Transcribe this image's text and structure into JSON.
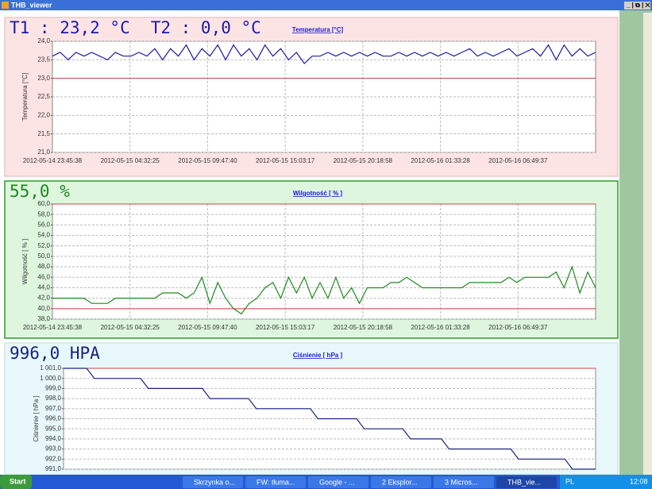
{
  "window": {
    "title": "THB_viewer"
  },
  "taskbar": {
    "start": "Start",
    "items": [
      "Skrzynka o...",
      "FW: tłuma...",
      "Google - ...",
      "2 Eksplor...",
      "3 Micros...",
      "THB_vie..."
    ],
    "language": "PL",
    "clock": "12:08"
  },
  "chart_data": [
    {
      "type": "line",
      "readouts": [
        "T1 : 23,2 °C",
        "T2 : 0,0 °C"
      ],
      "title": "Temperatura [°C]",
      "y_label": "Temperatura [°C]",
      "x_labels": [
        "2012-05-14 23:45:38",
        "2012-05-15 04:32:25",
        "2012-05-15 09:47:40",
        "2012-05-15 15:03:17",
        "2012-05-15 20:18:58",
        "2012-05-16 01:33:28",
        "2012-05-16 06:49:37"
      ],
      "color": "#1a1aa8",
      "limits": [
        23
      ],
      "values": [
        23.6,
        23.7,
        23.5,
        23.7,
        23.6,
        23.7,
        23.6,
        23.5,
        23.7,
        23.6,
        23.6,
        23.7,
        23.6,
        23.8,
        23.5,
        23.8,
        23.6,
        23.9,
        23.5,
        23.8,
        23.6,
        23.9,
        23.5,
        23.9,
        23.6,
        23.8,
        23.5,
        23.9,
        23.6,
        23.8,
        23.5,
        23.7,
        23.4,
        23.6,
        23.6,
        23.7,
        23.6,
        23.7,
        23.6,
        23.7,
        23.6,
        23.7,
        23.6,
        23.6,
        23.7,
        23.6,
        23.7,
        23.6,
        23.7,
        23.6,
        23.7,
        23.6,
        23.7,
        23.8,
        23.6,
        23.7,
        23.6,
        23.7,
        23.8,
        23.6,
        23.7,
        23.8,
        23.6,
        23.9,
        23.5,
        23.9,
        23.6,
        23.8,
        23.6,
        23.7
      ],
      "ylim": [
        21,
        24
      ],
      "yticks": [
        {
          "value": 21,
          "label": "21,0"
        },
        {
          "value": 21.5,
          "label": "21,5"
        },
        {
          "value": 22,
          "label": "22,0"
        },
        {
          "value": 22.5,
          "label": "22,5"
        },
        {
          "value": 23,
          "label": "23,0"
        },
        {
          "value": 23.5,
          "label": "23,5"
        },
        {
          "value": 24,
          "label": "24,0"
        }
      ],
      "grid": true
    },
    {
      "type": "line",
      "readouts": [
        "55,0 %"
      ],
      "title": "Wilgotność [ % ]",
      "y_label": "Wilgotność [ % ]",
      "x_labels": [
        "2012-05-14 23:45:38",
        "2012-05-15 04:32:25",
        "2012-05-15 09:47:40",
        "2012-05-15 15:03:17",
        "2012-05-15 20:18:58",
        "2012-05-16 01:33:28",
        "2012-05-16 06:49:37"
      ],
      "color": "#1e8a1e",
      "limits": [
        60,
        40
      ],
      "values": [
        42,
        42,
        42,
        42,
        42,
        41,
        41,
        41,
        42,
        42,
        42,
        42,
        42,
        42,
        43,
        43,
        43,
        42,
        43,
        46,
        41,
        45,
        42,
        40,
        39,
        41,
        42,
        44,
        45,
        42,
        46,
        43,
        46,
        42,
        45,
        42,
        46,
        42,
        44,
        41,
        44,
        44,
        44,
        45,
        45,
        46,
        45,
        44,
        44,
        44,
        44,
        44,
        44,
        45,
        45,
        45,
        45,
        45,
        46,
        45,
        46,
        46,
        46,
        46,
        47,
        44,
        48,
        43,
        47,
        44
      ],
      "ylim": [
        38,
        60
      ],
      "yticks": [
        {
          "value": 38,
          "label": "38,0"
        },
        {
          "value": 40,
          "label": "40,0"
        },
        {
          "value": 42,
          "label": "42,0"
        },
        {
          "value": 44,
          "label": "44,0"
        },
        {
          "value": 46,
          "label": "46,0"
        },
        {
          "value": 48,
          "label": "48,0"
        },
        {
          "value": 50,
          "label": "50,0"
        },
        {
          "value": 52,
          "label": "52,0"
        },
        {
          "value": 54,
          "label": "54,0"
        },
        {
          "value": 56,
          "label": "56,0"
        },
        {
          "value": 58,
          "label": "58,0"
        },
        {
          "value": 60,
          "label": "60,0"
        }
      ],
      "grid": true
    },
    {
      "type": "line",
      "readouts": [
        "996,0 HPA"
      ],
      "title": "Ciśnienie [ hPa ]",
      "y_label": "Ciśnienie [ hPa ]",
      "color": "#1a237e",
      "limits": [
        1001
      ],
      "values": [
        1001,
        1001,
        1001,
        1001,
        1000,
        1000,
        1000,
        1000,
        1000,
        1000,
        1000,
        999,
        999,
        999,
        999,
        999,
        999,
        999,
        999,
        998,
        998,
        998,
        998,
        998,
        998,
        997,
        997,
        997,
        997,
        997,
        997,
        997,
        997,
        996,
        996,
        996,
        996,
        996,
        996,
        995,
        995,
        995,
        995,
        995,
        995,
        994,
        994,
        994,
        994,
        994,
        993,
        993,
        993,
        993,
        993,
        993,
        993,
        993,
        993,
        992,
        992,
        992,
        992,
        992,
        992,
        992,
        991,
        991,
        991,
        991
      ],
      "ylim": [
        991,
        1001
      ],
      "yticks": [
        {
          "value": 991,
          "label": "991,0"
        },
        {
          "value": 992,
          "label": "992,0"
        },
        {
          "value": 993,
          "label": "993,0"
        },
        {
          "value": 994,
          "label": "994,0"
        },
        {
          "value": 995,
          "label": "995,0"
        },
        {
          "value": 996,
          "label": "996,0"
        },
        {
          "value": 997,
          "label": "997,0"
        },
        {
          "value": 998,
          "label": "998,0"
        },
        {
          "value": 999,
          "label": "999,0"
        },
        {
          "value": 1000,
          "label": "1 000,0"
        },
        {
          "value": 1001,
          "label": "1 001,0"
        }
      ],
      "grid": true
    }
  ]
}
